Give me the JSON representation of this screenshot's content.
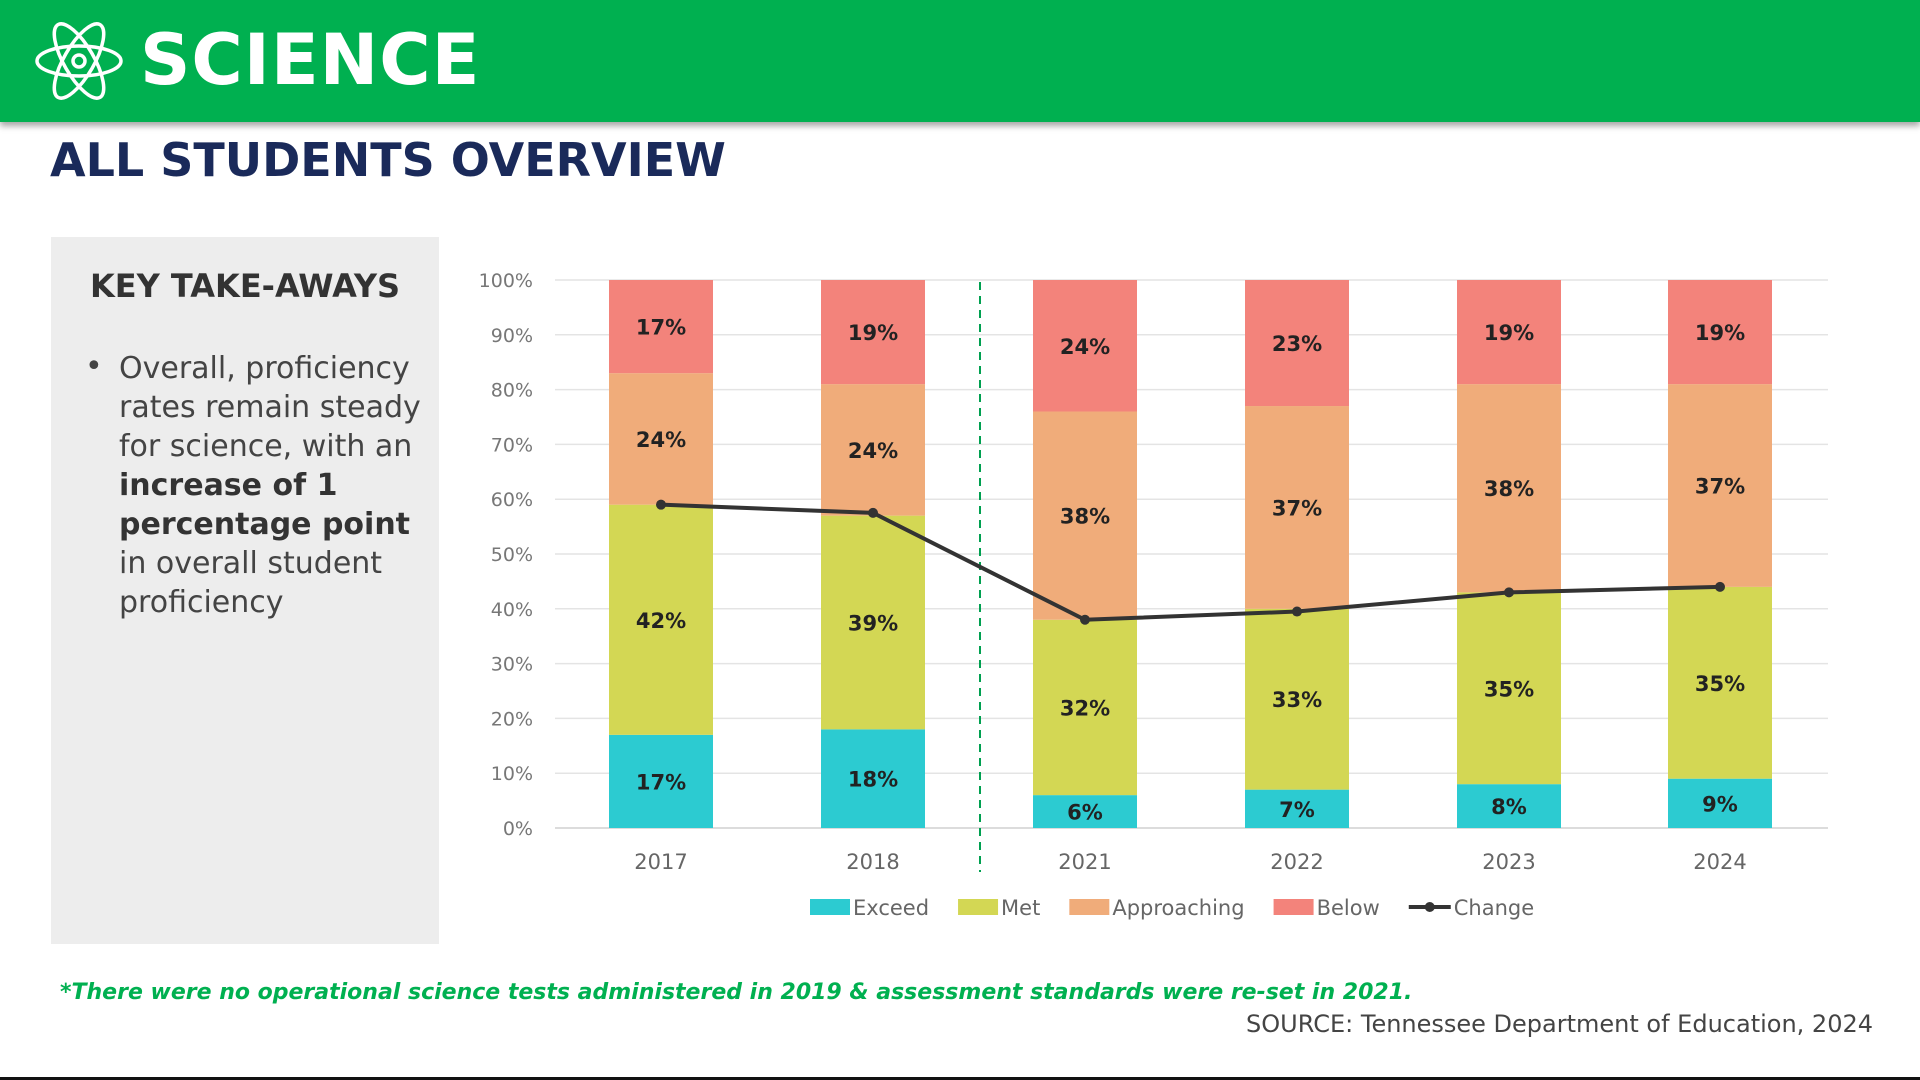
{
  "header": {
    "title": "SCIENCE",
    "icon": "atom-icon",
    "color": "#00b050"
  },
  "page_title": "ALL STUDENTS OVERVIEW",
  "takeaways": {
    "heading": "KEY TAKE-AWAYS",
    "bullet_pre": "Overall, proficiency rates remain steady for science, with an ",
    "bullet_bold": "increase of 1 percentage point",
    "bullet_post": " in overall student proficiency"
  },
  "chart_data": {
    "type": "bar",
    "stacked": true,
    "categories": [
      "2017",
      "2018",
      "2021",
      "2022",
      "2023",
      "2024"
    ],
    "ylim": [
      0,
      100
    ],
    "yticks": [
      "0%",
      "10%",
      "20%",
      "30%",
      "40%",
      "50%",
      "60%",
      "70%",
      "80%",
      "90%",
      "100%"
    ],
    "grid": true,
    "legend": "bottom",
    "divider_between": [
      "2018",
      "2021"
    ],
    "series": [
      {
        "name": "Exceed",
        "color": "#2ccbd1",
        "values": [
          17,
          18,
          6,
          7,
          8,
          9
        ],
        "labels": [
          "17%",
          "18%",
          "6%",
          "7%",
          "8%",
          "9%"
        ]
      },
      {
        "name": "Met",
        "color": "#d3d754",
        "values": [
          42,
          39,
          32,
          33,
          35,
          35
        ],
        "labels": [
          "42%",
          "39%",
          "32%",
          "33%",
          "35%",
          "35%"
        ]
      },
      {
        "name": "Approaching",
        "color": "#f0ac7a",
        "values": [
          24,
          24,
          38,
          37,
          38,
          37
        ],
        "labels": [
          "24%",
          "24%",
          "38%",
          "37%",
          "38%",
          "37%"
        ]
      },
      {
        "name": "Below",
        "color": "#f3837b",
        "values": [
          17,
          19,
          24,
          23,
          19,
          19
        ],
        "labels": [
          "17%",
          "19%",
          "24%",
          "23%",
          "19%",
          "19%"
        ]
      }
    ],
    "line": {
      "name": "Change",
      "color": "#333333",
      "values": [
        59,
        57.5,
        38,
        39.5,
        43,
        44
      ]
    }
  },
  "footnote": "*There were no operational science tests administered in 2019 & assessment standards were re-set in 2021.",
  "source": "SOURCE: Tennessee Department of Education, 2024"
}
